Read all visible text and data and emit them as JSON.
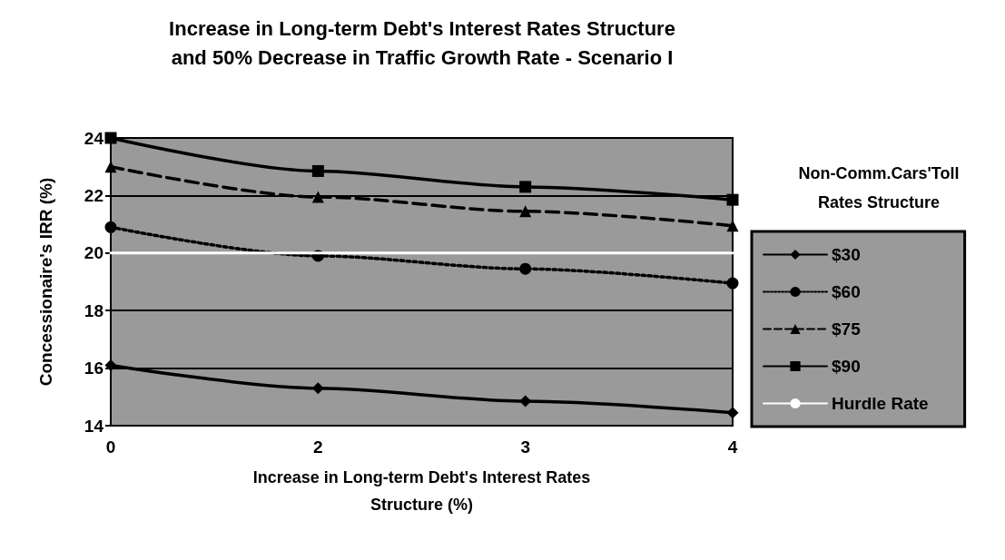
{
  "chart_data": {
    "type": "line",
    "title": "Increase in Long-term Debt's Interest Rates Structure\nand 50% Decrease in Traffic Growth Rate - Scenario I",
    "xlabel": "Increase in Long-term Debt's Interest Rates\nStructure (%)",
    "ylabel": "Concessionaire's IRR (%)",
    "legend_title": "Non-Comm.Cars'Toll\nRates Structure",
    "categories": [
      "0",
      "2",
      "3",
      "4"
    ],
    "series": [
      {
        "name": "$30",
        "color": "#000000",
        "values": [
          16.1,
          15.3,
          14.85,
          14.45
        ],
        "marker": "diamond",
        "line_style": "solid"
      },
      {
        "name": "$60",
        "color": "#000000",
        "values": [
          20.9,
          19.9,
          19.45,
          18.95
        ],
        "marker": "circle",
        "line_style": "dotted"
      },
      {
        "name": "$75",
        "color": "#000000",
        "values": [
          23.0,
          21.95,
          21.45,
          20.95
        ],
        "marker": "triangle",
        "line_style": "dashed"
      },
      {
        "name": "$90",
        "color": "#000000",
        "values": [
          24.0,
          22.85,
          22.3,
          21.85
        ],
        "marker": "square",
        "line_style": "solid"
      },
      {
        "name": "Hurdle Rate",
        "color": "#ffffff",
        "values": [
          20,
          20,
          20,
          20
        ],
        "marker": "none",
        "line_style": "solid"
      }
    ],
    "ylim": [
      14,
      24
    ],
    "yticks": [
      14,
      16,
      18,
      20,
      22,
      24
    ],
    "grid": "y",
    "legend": "right"
  }
}
